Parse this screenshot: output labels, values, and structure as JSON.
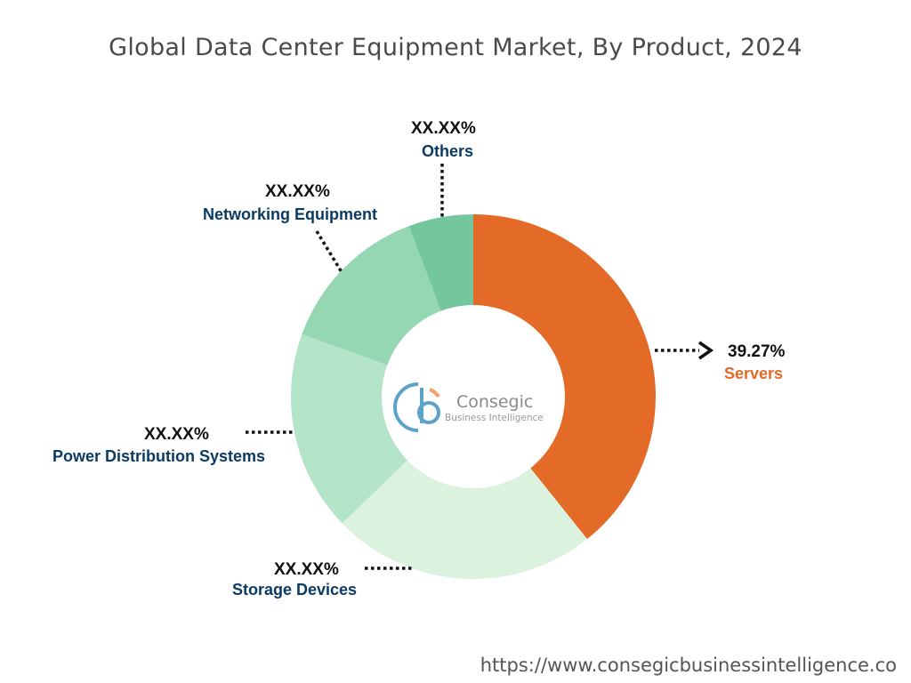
{
  "chart_data": {
    "type": "pie",
    "title": "Global Data Center Equipment Market, By Product, 2024",
    "categories": [
      "Servers",
      "Storage Devices",
      "Power Distribution Systems",
      "Networking Equipment",
      "Others"
    ],
    "values": [
      39.27,
      23.5,
      17.8,
      13.7,
      5.73
    ],
    "value_labels": [
      "39.27%",
      "XX.XX%",
      "XX.XX%",
      "XX.XX%",
      "XX.XX%"
    ],
    "colors": [
      "#E46A27",
      "#DBF2DF",
      "#B5E5C8",
      "#95D7B2",
      "#74C69D"
    ],
    "label_colors": [
      "#E46A27",
      "#0B3A63",
      "#0B3A63",
      "#0B3A63",
      "#0B3A63"
    ],
    "donut": true
  },
  "logo": {
    "name": "Consegic",
    "tagline": "Business Intelligence"
  },
  "footer": {
    "url": "https://www.consegicbusinessintelligence.co"
  }
}
